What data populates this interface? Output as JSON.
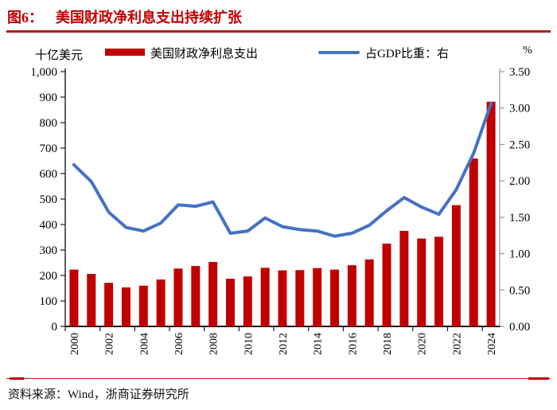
{
  "header": {
    "figure_label": "图6：",
    "title": "美国财政净利息支出持续扩张"
  },
  "legend": {
    "left_axis_unit": "十亿美元",
    "bar_series_label": "美国财政净利息支出",
    "line_series_label": "占GDP比重：右",
    "right_axis_unit": "%"
  },
  "footer": {
    "source": "资料来源：Wind，浙商证券研究所"
  },
  "colors": {
    "bar_red": "#c00000",
    "line_blue": "#4472c4",
    "title_red": "#c00000",
    "divider_red": "#b02020",
    "right_axis_gray": "#999999",
    "axis_black": "#1a1a1a"
  },
  "chart_data": {
    "type": "bar",
    "title": "图6：美国财政净利息支出持续扩张",
    "categories": [
      2000,
      2001,
      2002,
      2003,
      2004,
      2005,
      2006,
      2007,
      2008,
      2009,
      2010,
      2011,
      2012,
      2013,
      2014,
      2015,
      2016,
      2017,
      2018,
      2019,
      2020,
      2021,
      2022,
      2023,
      2024
    ],
    "series": [
      {
        "name": "美国财政净利息支出",
        "type": "bar",
        "axis": "left",
        "color": "#c00000",
        "values": [
          223,
          206,
          171,
          153,
          160,
          184,
          227,
          237,
          253,
          187,
          196,
          230,
          220,
          221,
          229,
          223,
          240,
          263,
          325,
          375,
          345,
          352,
          476,
          659,
          882
        ]
      },
      {
        "name": "占GDP比重：右",
        "type": "line",
        "axis": "right",
        "color": "#4472c4",
        "values": [
          2.22,
          1.99,
          1.57,
          1.36,
          1.31,
          1.42,
          1.67,
          1.65,
          1.71,
          1.28,
          1.31,
          1.49,
          1.37,
          1.33,
          1.31,
          1.24,
          1.28,
          1.39,
          1.59,
          1.77,
          1.64,
          1.54,
          1.88,
          2.38,
          3.06
        ]
      }
    ],
    "left_axis": {
      "unit": "十亿美元",
      "min": 0,
      "max": 1000,
      "step": 100,
      "tick_labels": [
        "0",
        "100",
        "200",
        "300",
        "400",
        "500",
        "600",
        "700",
        "800",
        "900",
        "1,000"
      ]
    },
    "right_axis": {
      "unit": "%",
      "min": 0,
      "max": 3.5,
      "step": 0.5,
      "tick_labels": [
        "0.00",
        "0.50",
        "1.00",
        "1.50",
        "2.00",
        "2.50",
        "3.00",
        "3.50"
      ]
    },
    "x_tick_labels": [
      "2000",
      "2002",
      "2004",
      "2006",
      "2008",
      "2010",
      "2012",
      "2014",
      "2016",
      "2018",
      "2020",
      "2022",
      "2024"
    ],
    "legend_position": "top",
    "grid": false
  }
}
